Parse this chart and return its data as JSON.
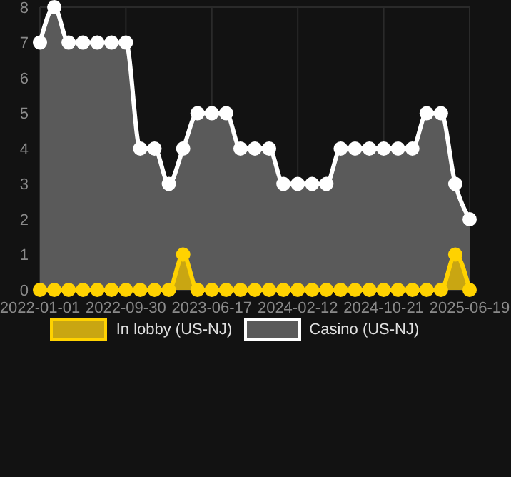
{
  "chart_data": {
    "type": "area",
    "categories": [
      "2022-01-01",
      null,
      null,
      null,
      null,
      null,
      "2022-09-30",
      null,
      null,
      null,
      null,
      null,
      "2023-06-17",
      null,
      null,
      null,
      null,
      null,
      "2024-02-12",
      null,
      null,
      null,
      null,
      null,
      "2024-10-21",
      null,
      null,
      null,
      null,
      null,
      "2025-06-19"
    ],
    "series": [
      {
        "name": "In lobby (US-NJ)",
        "color": "#ffd200",
        "values": [
          0,
          0,
          0,
          0,
          0,
          0,
          0,
          0,
          0,
          0,
          1,
          0,
          0,
          0,
          0,
          0,
          0,
          0,
          0,
          0,
          0,
          0,
          0,
          0,
          0,
          0,
          0,
          0,
          0,
          1,
          0
        ]
      },
      {
        "name": "Casino (US-NJ)",
        "color": "#ffffff",
        "values": [
          7,
          8,
          7,
          7,
          7,
          7,
          7,
          4,
          4,
          3,
          4,
          5,
          5,
          5,
          4,
          4,
          4,
          3,
          3,
          3,
          3,
          4,
          4,
          4,
          4,
          4,
          4,
          5,
          5,
          3,
          2
        ]
      }
    ],
    "ylim": [
      0,
      8
    ],
    "yticks": [
      0,
      1,
      2,
      3,
      4,
      5,
      6,
      7,
      8
    ],
    "grid": true,
    "legend": "bottom",
    "marker": "circle"
  }
}
